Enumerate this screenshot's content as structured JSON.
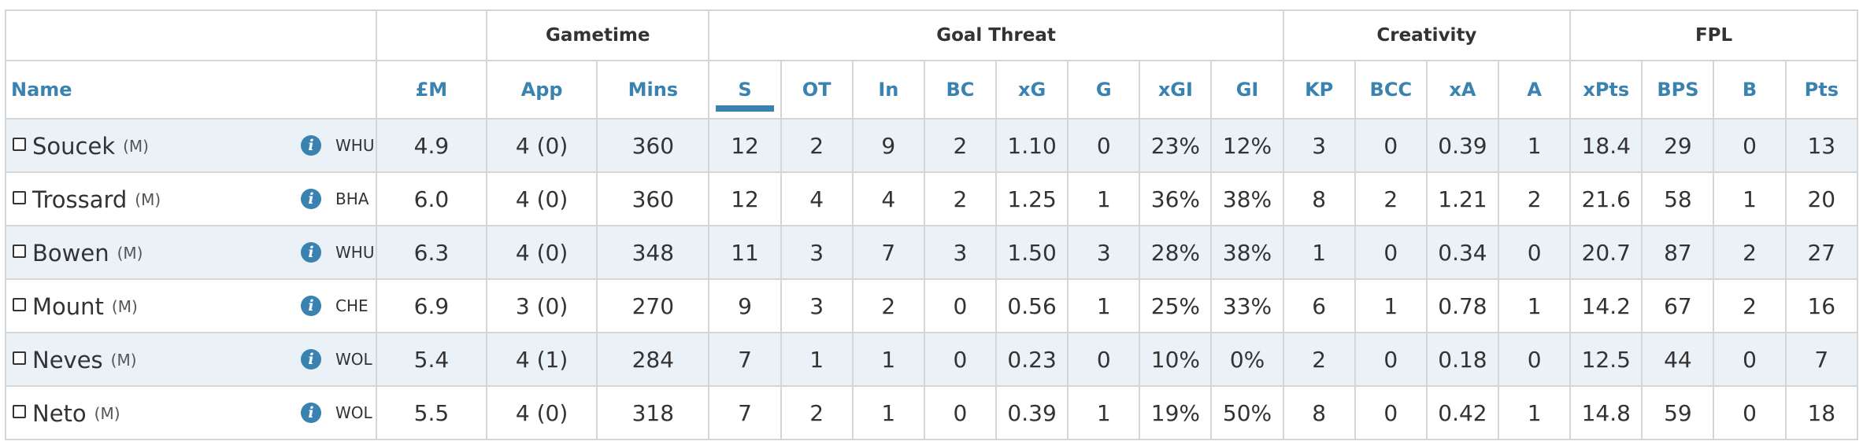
{
  "groups": {
    "gametime": "Gametime",
    "goal_threat": "Goal Threat",
    "creativity": "Creativity",
    "fpl": "FPL"
  },
  "columns": {
    "name": "Name",
    "price": "£M",
    "app": "App",
    "mins": "Mins",
    "s": "S",
    "ot": "OT",
    "in": "In",
    "bc": "BC",
    "xg": "xG",
    "g": "G",
    "xgi": "xGI",
    "gi": "GI",
    "kp": "KP",
    "bcc": "BCC",
    "xa": "xA",
    "a": "A",
    "xpts": "xPts",
    "bps": "BPS",
    "b": "B",
    "pts": "Pts"
  },
  "sorted_by": "S",
  "colors": {
    "accent": "#3a82b0",
    "row_shade": "#eaf1f7",
    "border": "#d6d6d6"
  },
  "rows": [
    {
      "name": "Soucek",
      "pos": "(M)",
      "team": "WHU",
      "price": "4.9",
      "app": "4 (0)",
      "mins": "360",
      "s": "12",
      "ot": "2",
      "in": "9",
      "bc": "2",
      "xg": "1.10",
      "g": "0",
      "xgi": "23%",
      "gi": "12%",
      "kp": "3",
      "bcc": "0",
      "xa": "0.39",
      "a": "1",
      "xpts": "18.4",
      "bps": "29",
      "b": "0",
      "pts": "13"
    },
    {
      "name": "Trossard",
      "pos": "(M)",
      "team": "BHA",
      "price": "6.0",
      "app": "4 (0)",
      "mins": "360",
      "s": "12",
      "ot": "4",
      "in": "4",
      "bc": "2",
      "xg": "1.25",
      "g": "1",
      "xgi": "36%",
      "gi": "38%",
      "kp": "8",
      "bcc": "2",
      "xa": "1.21",
      "a": "2",
      "xpts": "21.6",
      "bps": "58",
      "b": "1",
      "pts": "20"
    },
    {
      "name": "Bowen",
      "pos": "(M)",
      "team": "WHU",
      "price": "6.3",
      "app": "4 (0)",
      "mins": "348",
      "s": "11",
      "ot": "3",
      "in": "7",
      "bc": "3",
      "xg": "1.50",
      "g": "3",
      "xgi": "28%",
      "gi": "38%",
      "kp": "1",
      "bcc": "0",
      "xa": "0.34",
      "a": "0",
      "xpts": "20.7",
      "bps": "87",
      "b": "2",
      "pts": "27"
    },
    {
      "name": "Mount",
      "pos": "(M)",
      "team": "CHE",
      "price": "6.9",
      "app": "3 (0)",
      "mins": "270",
      "s": "9",
      "ot": "3",
      "in": "2",
      "bc": "0",
      "xg": "0.56",
      "g": "1",
      "xgi": "25%",
      "gi": "33%",
      "kp": "6",
      "bcc": "1",
      "xa": "0.78",
      "a": "1",
      "xpts": "14.2",
      "bps": "67",
      "b": "2",
      "pts": "16"
    },
    {
      "name": "Neves",
      "pos": "(M)",
      "team": "WOL",
      "price": "5.4",
      "app": "4 (1)",
      "mins": "284",
      "s": "7",
      "ot": "1",
      "in": "1",
      "bc": "0",
      "xg": "0.23",
      "g": "0",
      "xgi": "10%",
      "gi": "0%",
      "kp": "2",
      "bcc": "0",
      "xa": "0.18",
      "a": "0",
      "xpts": "12.5",
      "bps": "44",
      "b": "0",
      "pts": "7"
    },
    {
      "name": "Neto",
      "pos": "(M)",
      "team": "WOL",
      "price": "5.5",
      "app": "4 (0)",
      "mins": "318",
      "s": "7",
      "ot": "2",
      "in": "1",
      "bc": "0",
      "xg": "0.39",
      "g": "1",
      "xgi": "19%",
      "gi": "50%",
      "kp": "8",
      "bcc": "0",
      "xa": "0.42",
      "a": "1",
      "xpts": "14.8",
      "bps": "59",
      "b": "0",
      "pts": "18"
    }
  ],
  "row_keys": [
    "price",
    "app",
    "mins",
    "s",
    "ot",
    "in",
    "bc",
    "xg",
    "g",
    "xgi",
    "gi",
    "kp",
    "bcc",
    "xa",
    "a",
    "xpts",
    "bps",
    "b",
    "pts"
  ]
}
